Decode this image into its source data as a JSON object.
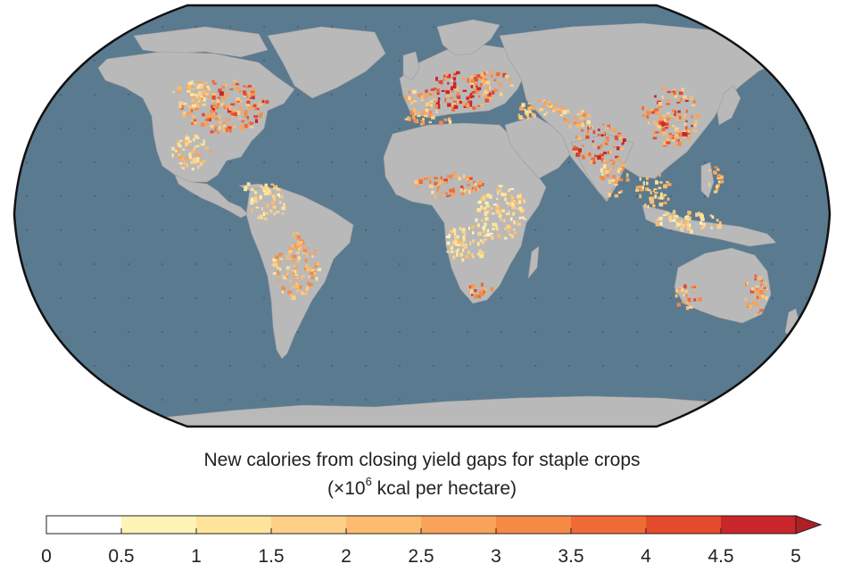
{
  "map": {
    "projection": "Robinson",
    "ocean_color": "#5a7a90",
    "land_color": "#b9b9b9",
    "graticule": true
  },
  "caption": {
    "line1": "New calories from closing yield gaps for staple crops",
    "line2_prefix": "(×10",
    "line2_exponent": "6",
    "line2_suffix": " kcal per hectare)"
  },
  "legend": {
    "ticks": [
      "0",
      "0.5",
      "1",
      "1.5",
      "2",
      "2.5",
      "3",
      "3.5",
      "4",
      "4.5",
      "5"
    ],
    "colors": [
      "#ffffff",
      "#fff3b8",
      "#fde49a",
      "#fdd088",
      "#fcbb6e",
      "#f9a25a",
      "#f68a44",
      "#f06a36",
      "#e44a2c",
      "#c8262a"
    ],
    "overflow_color": "#b21e26",
    "overflow": "extends beyond 5"
  }
}
